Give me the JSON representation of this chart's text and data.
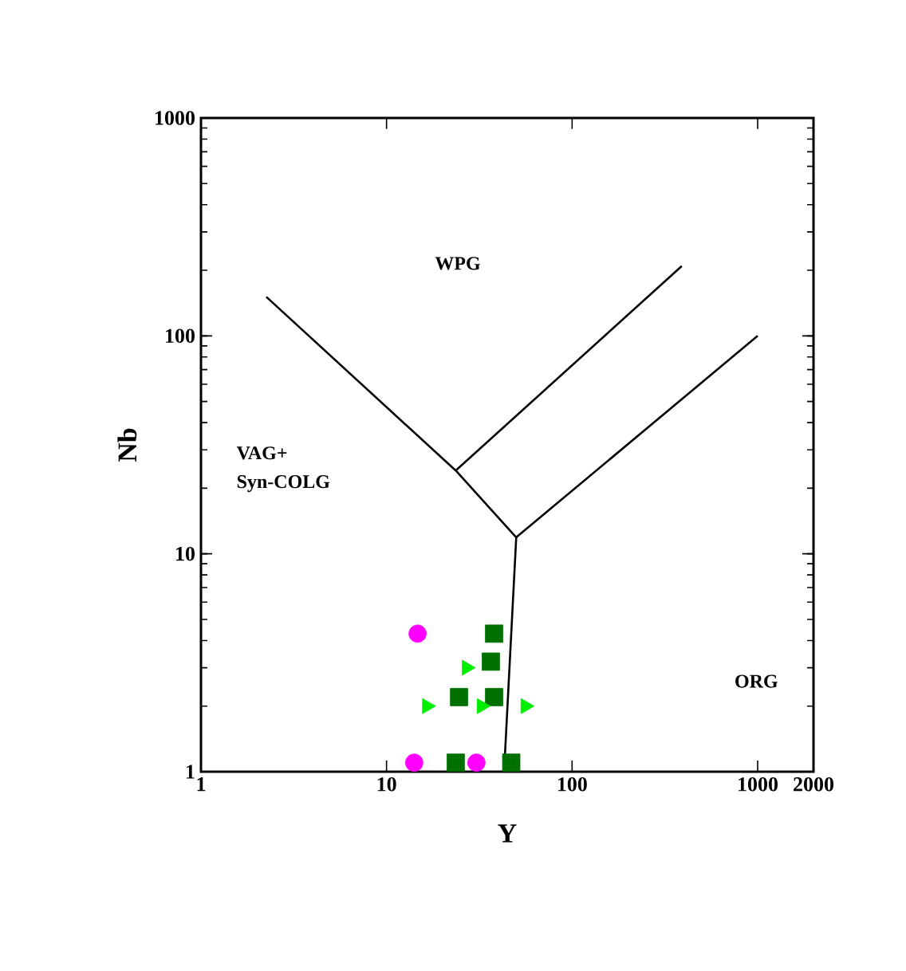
{
  "chart_data": {
    "type": "scatter",
    "xlabel": "Y",
    "ylabel": "Nb",
    "log": "xy",
    "xlim": [
      1,
      2000
    ],
    "ylim": [
      1,
      1000
    ],
    "xticks": [
      1,
      10,
      100,
      1000,
      2000
    ],
    "yticks": [
      1,
      10,
      100,
      1000
    ],
    "annotations": [
      "WPG",
      "VAG+",
      "Syn-COLG",
      "ORG"
    ],
    "series": [
      {
        "type": "line",
        "color": "#000000",
        "marker": "none",
        "x": [
          2.25,
          23.6,
          50,
          43
        ],
        "values": [
          151,
          24.1,
          11.9,
          1
        ]
      },
      {
        "type": "line",
        "color": "#000000",
        "marker": "none",
        "x": [
          23.6,
          390
        ],
        "values": [
          24.1,
          209
        ]
      },
      {
        "type": "line",
        "color": "#000000",
        "marker": "none",
        "x": [
          50,
          1000
        ],
        "values": [
          11.9,
          100
        ]
      },
      {
        "color": "#ff00ff",
        "marker": "circle",
        "x": [
          14.7,
          14.1,
          30.5
        ],
        "values": [
          4.3,
          1.1,
          1.1
        ]
      },
      {
        "color": "#007000",
        "marker": "square",
        "x": [
          38,
          36.5,
          24.6,
          38,
          23.6,
          47
        ],
        "values": [
          4.3,
          3.2,
          2.2,
          2.2,
          1.1,
          1.1
        ]
      },
      {
        "color": "#00ee00",
        "marker": "triangle",
        "x": [
          27,
          16.5,
          32.5,
          56
        ],
        "values": [
          3.0,
          2.0,
          2.0,
          2.0
        ]
      }
    ]
  }
}
